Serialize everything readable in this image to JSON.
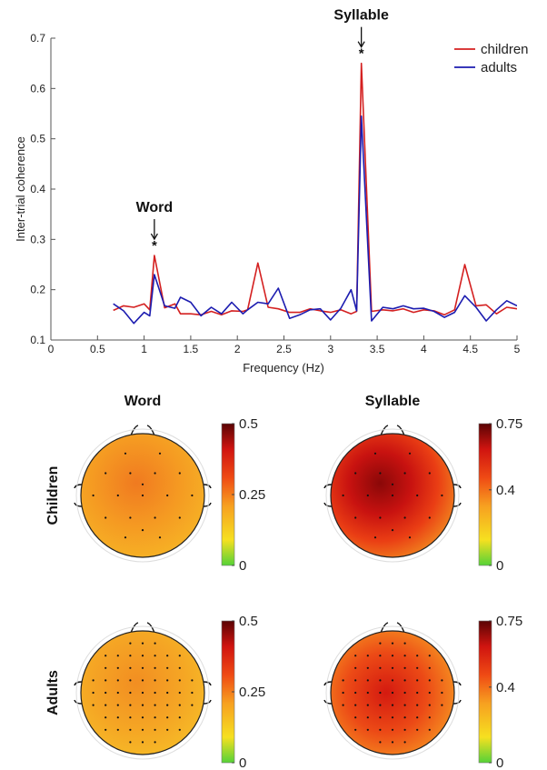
{
  "chart_data": [
    {
      "type": "line",
      "xlabel": "Frequency (Hz)",
      "ylabel": "Inter-trial coherence",
      "xlim": [
        0,
        5
      ],
      "ylim": [
        0.1,
        0.7
      ],
      "xticks": [
        "0",
        "0.5",
        "1",
        "1.5",
        "2",
        "2.5",
        "3",
        "3.5",
        "4",
        "4.5",
        "5"
      ],
      "yticks": [
        "0.1",
        "0.2",
        "0.3",
        "0.4",
        "0.5",
        "0.6",
        "0.7"
      ],
      "legend_position": "top-right",
      "series": [
        {
          "name": "children",
          "color": "#d42020",
          "points": [
            [
              0.67,
              0.159
            ],
            [
              0.78,
              0.168
            ],
            [
              0.89,
              0.165
            ],
            [
              1.0,
              0.172
            ],
            [
              1.06,
              0.16
            ],
            [
              1.11,
              0.268
            ],
            [
              1.22,
              0.164
            ],
            [
              1.33,
              0.172
            ],
            [
              1.39,
              0.152
            ],
            [
              1.5,
              0.152
            ],
            [
              1.61,
              0.15
            ],
            [
              1.72,
              0.157
            ],
            [
              1.83,
              0.15
            ],
            [
              1.94,
              0.158
            ],
            [
              2.06,
              0.157
            ],
            [
              2.11,
              0.16
            ],
            [
              2.22,
              0.253
            ],
            [
              2.33,
              0.165
            ],
            [
              2.44,
              0.162
            ],
            [
              2.56,
              0.155
            ],
            [
              2.67,
              0.155
            ],
            [
              2.78,
              0.162
            ],
            [
              2.89,
              0.158
            ],
            [
              3.0,
              0.155
            ],
            [
              3.11,
              0.16
            ],
            [
              3.22,
              0.152
            ],
            [
              3.28,
              0.157
            ],
            [
              3.33,
              0.65
            ],
            [
              3.44,
              0.157
            ],
            [
              3.56,
              0.16
            ],
            [
              3.67,
              0.158
            ],
            [
              3.78,
              0.162
            ],
            [
              3.89,
              0.155
            ],
            [
              4.0,
              0.16
            ],
            [
              4.11,
              0.158
            ],
            [
              4.22,
              0.15
            ],
            [
              4.33,
              0.16
            ],
            [
              4.44,
              0.25
            ],
            [
              4.56,
              0.168
            ],
            [
              4.67,
              0.17
            ],
            [
              4.78,
              0.152
            ],
            [
              4.89,
              0.165
            ],
            [
              5.0,
              0.162
            ]
          ]
        },
        {
          "name": "adults",
          "color": "#1c1cb0",
          "points": [
            [
              0.67,
              0.172
            ],
            [
              0.78,
              0.158
            ],
            [
              0.89,
              0.133
            ],
            [
              1.0,
              0.155
            ],
            [
              1.06,
              0.148
            ],
            [
              1.11,
              0.23
            ],
            [
              1.22,
              0.168
            ],
            [
              1.33,
              0.163
            ],
            [
              1.39,
              0.185
            ],
            [
              1.5,
              0.175
            ],
            [
              1.61,
              0.148
            ],
            [
              1.72,
              0.165
            ],
            [
              1.83,
              0.152
            ],
            [
              1.94,
              0.175
            ],
            [
              2.06,
              0.152
            ],
            [
              2.11,
              0.16
            ],
            [
              2.22,
              0.175
            ],
            [
              2.33,
              0.172
            ],
            [
              2.44,
              0.203
            ],
            [
              2.56,
              0.143
            ],
            [
              2.67,
              0.15
            ],
            [
              2.78,
              0.16
            ],
            [
              2.89,
              0.162
            ],
            [
              3.0,
              0.14
            ],
            [
              3.11,
              0.163
            ],
            [
              3.22,
              0.2
            ],
            [
              3.28,
              0.158
            ],
            [
              3.33,
              0.545
            ],
            [
              3.44,
              0.138
            ],
            [
              3.56,
              0.165
            ],
            [
              3.67,
              0.162
            ],
            [
              3.78,
              0.168
            ],
            [
              3.89,
              0.162
            ],
            [
              4.0,
              0.163
            ],
            [
              4.11,
              0.157
            ],
            [
              4.22,
              0.145
            ],
            [
              4.33,
              0.155
            ],
            [
              4.44,
              0.188
            ],
            [
              4.56,
              0.165
            ],
            [
              4.67,
              0.138
            ],
            [
              4.78,
              0.16
            ],
            [
              4.89,
              0.178
            ],
            [
              5.0,
              0.168
            ]
          ]
        }
      ],
      "annotations": [
        {
          "text": "Word",
          "x": 1.11,
          "marker": "*"
        },
        {
          "text": "Syllable",
          "x": 3.33,
          "marker": "*"
        }
      ]
    },
    {
      "type": "heatmap",
      "subtype": "scalp topography",
      "column_titles": [
        "Word",
        "Syllable"
      ],
      "row_titles": [
        "Children",
        "Adults"
      ],
      "colorbars": [
        {
          "column": "Word",
          "range": [
            0,
            0.5
          ],
          "tick_labels": [
            "0.5",
            "0.25",
            "0"
          ],
          "tick_values": [
            0.5,
            0.25,
            0
          ]
        },
        {
          "column": "Syllable",
          "range": [
            0,
            0.75
          ],
          "tick_labels": [
            "0.75",
            "0.4",
            "0"
          ],
          "tick_values": [
            0.75,
            0.4,
            0
          ]
        }
      ],
      "colormap": [
        "#55d238",
        "#f6e020",
        "#f7a020",
        "#ef4a14",
        "#d01410",
        "#5a0404"
      ],
      "maps": [
        {
          "row": "Children",
          "column": "Word",
          "level": 0.3
        },
        {
          "row": "Children",
          "column": "Syllable",
          "level": 0.62
        },
        {
          "row": "Adults",
          "column": "Word",
          "level": 0.27
        },
        {
          "row": "Adults",
          "column": "Syllable",
          "level": 0.55
        }
      ]
    }
  ]
}
